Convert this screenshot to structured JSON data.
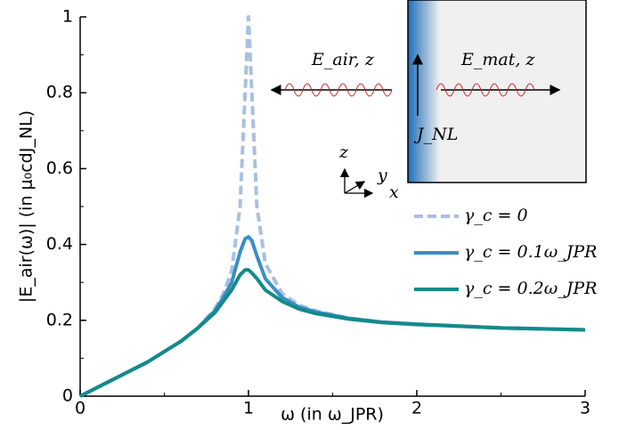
{
  "chart_data": {
    "type": "line",
    "xlabel": "ω (in ω_JPR)",
    "ylabel": "|E_air(ω)| (in μ₀cdJ_NL)",
    "x": [
      0,
      0.2,
      0.4,
      0.6,
      0.7,
      0.8,
      0.85,
      0.9,
      0.95,
      0.98,
      1.0,
      1.02,
      1.05,
      1.1,
      1.2,
      1.3,
      1.4,
      1.6,
      1.8,
      2.0,
      2.5,
      3.0
    ],
    "series": [
      {
        "name": "γ_c = 0",
        "color": "#a9c0e0",
        "dashed": true,
        "values": [
          0,
          0.045,
          0.09,
          0.145,
          0.18,
          0.23,
          0.27,
          0.33,
          0.5,
          0.8,
          1.0,
          0.8,
          0.5,
          0.35,
          0.27,
          0.24,
          0.225,
          0.205,
          0.195,
          0.19,
          0.18,
          0.175
        ]
      },
      {
        "name": "γ_c = 0.1ω_JPR",
        "color": "#3a8ec8",
        "dashed": false,
        "values": [
          0,
          0.045,
          0.09,
          0.145,
          0.18,
          0.225,
          0.26,
          0.3,
          0.38,
          0.415,
          0.42,
          0.41,
          0.37,
          0.31,
          0.26,
          0.235,
          0.222,
          0.205,
          0.195,
          0.19,
          0.18,
          0.175
        ]
      },
      {
        "name": "γ_c = 0.2ω_JPR",
        "color": "#138a8a",
        "dashed": false,
        "values": [
          0,
          0.045,
          0.09,
          0.145,
          0.18,
          0.22,
          0.25,
          0.28,
          0.32,
          0.333,
          0.333,
          0.325,
          0.31,
          0.28,
          0.25,
          0.23,
          0.218,
          0.203,
          0.194,
          0.189,
          0.18,
          0.175
        ]
      }
    ],
    "xlim": [
      0,
      3
    ],
    "xticks": [
      0,
      1,
      2,
      3
    ],
    "ylim": [
      0,
      1
    ],
    "yticks": [
      0,
      0.2,
      0.4,
      0.6,
      0.8,
      1
    ],
    "legend": "lower right",
    "annotations": [
      "E_air, z",
      "E_mat, z",
      "J_NL",
      "z",
      "y",
      "x"
    ]
  }
}
